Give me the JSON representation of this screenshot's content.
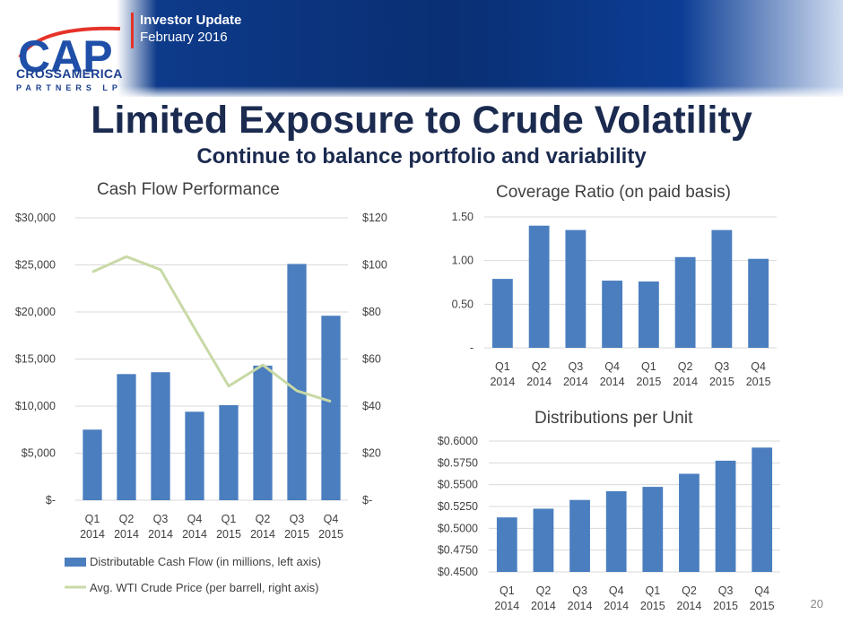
{
  "header": {
    "logo_text": "CAP",
    "company_line1": "CROSSAMERICA",
    "company_line2": "PARTNERS LP",
    "update_title": "Investor Update",
    "update_date": "February 2016"
  },
  "slide": {
    "title": "Limited Exposure to Crude Volatility",
    "subtitle": "Continue to balance portfolio and variability",
    "page_number": "20"
  },
  "colors": {
    "bar": "#4a7ebf",
    "line": "#c8d9a6",
    "grid": "#d9d9d9",
    "title": "#1b2a4f"
  },
  "chart_data": [
    {
      "type": "bar",
      "title": "Cash Flow Performance",
      "categories": [
        [
          "Q1",
          "2014"
        ],
        [
          "Q2",
          "2014"
        ],
        [
          "Q3",
          "2014"
        ],
        [
          "Q4",
          "2014"
        ],
        [
          "Q1",
          "2015"
        ],
        [
          "Q2",
          "2014"
        ],
        [
          "Q3",
          "2015"
        ],
        [
          "Q4",
          "2015"
        ]
      ],
      "series": [
        {
          "name": "Distributable Cash Flow (in millions, left axis)",
          "type": "bar",
          "axis": "left",
          "values": [
            7500,
            13400,
            13600,
            9400,
            10100,
            14300,
            25100,
            19600
          ]
        },
        {
          "name": "Avg. WTI Crude Price (per barrell, right axis)",
          "type": "line",
          "axis": "right",
          "values": [
            97,
            103.5,
            98,
            73,
            48.5,
            57.5,
            46.5,
            42
          ]
        }
      ],
      "left_axis": {
        "ylim": [
          0,
          30000
        ],
        "ticks": [
          "$-",
          "$5,000",
          "$10,000",
          "$15,000",
          "$20,000",
          "$25,000",
          "$30,000"
        ]
      },
      "right_axis": {
        "ylim": [
          0,
          120
        ],
        "ticks": [
          "$-",
          "$20",
          "$40",
          "$60",
          "$80",
          "$100",
          "$120"
        ]
      },
      "legend_position": "bottom"
    },
    {
      "type": "bar",
      "title": "Coverage Ratio (on paid basis)",
      "categories": [
        [
          "Q1",
          "2014"
        ],
        [
          "Q2",
          "2014"
        ],
        [
          "Q3",
          "2014"
        ],
        [
          "Q4",
          "2014"
        ],
        [
          "Q1",
          "2015"
        ],
        [
          "Q2",
          "2014"
        ],
        [
          "Q3",
          "2015"
        ],
        [
          "Q4",
          "2015"
        ]
      ],
      "values": [
        0.79,
        1.4,
        1.35,
        0.77,
        0.76,
        1.04,
        1.35,
        1.02
      ],
      "ylim": [
        0,
        1.5
      ],
      "ticks": [
        "-",
        "0.50",
        "1.00",
        "1.50"
      ]
    },
    {
      "type": "bar",
      "title": "Distributions per Unit",
      "categories": [
        [
          "Q1",
          "2014"
        ],
        [
          "Q2",
          "2014"
        ],
        [
          "Q3",
          "2014"
        ],
        [
          "Q4",
          "2014"
        ],
        [
          "Q1",
          "2015"
        ],
        [
          "Q2",
          "2014"
        ],
        [
          "Q3",
          "2015"
        ],
        [
          "Q4",
          "2015"
        ]
      ],
      "values": [
        0.5125,
        0.5225,
        0.5325,
        0.5425,
        0.5475,
        0.5625,
        0.5775,
        0.5925
      ],
      "ylim": [
        0.45,
        0.6
      ],
      "ticks": [
        "$0.4500",
        "$0.4750",
        "$0.5000",
        "$0.5250",
        "$0.5500",
        "$0.5750",
        "$0.6000"
      ]
    }
  ]
}
